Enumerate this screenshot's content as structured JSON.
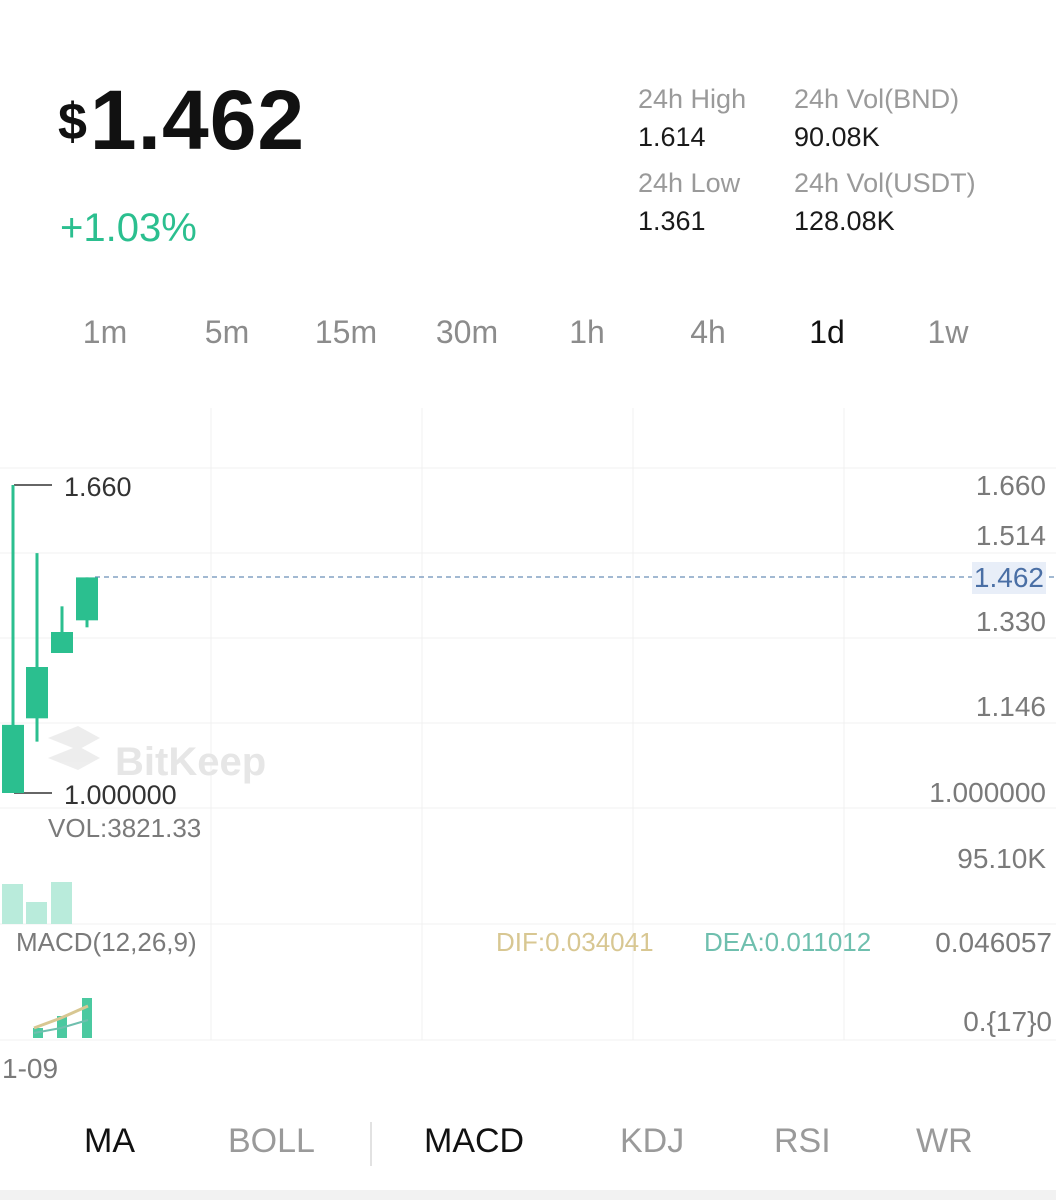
{
  "header": {
    "currency_symbol": "$",
    "price": "1.462",
    "change": "+1.03%",
    "stats": {
      "high_label": "24h High",
      "high_value": "1.614",
      "vol_bnd_label": "24h Vol(BND)",
      "vol_bnd_value": "90.08K",
      "low_label": "24h Low",
      "low_value": "1.361",
      "vol_usdt_label": "24h Vol(USDT)",
      "vol_usdt_value": "128.08K"
    }
  },
  "intervals": [
    {
      "label": "1m",
      "active": false
    },
    {
      "label": "5m",
      "active": false
    },
    {
      "label": "15m",
      "active": false
    },
    {
      "label": "30m",
      "active": false
    },
    {
      "label": "1h",
      "active": false
    },
    {
      "label": "4h",
      "active": false
    },
    {
      "label": "1d",
      "active": true
    },
    {
      "label": "1w",
      "active": false
    }
  ],
  "chart": {
    "y_axis": [
      "1.660",
      "1.514",
      "1.462",
      "1.330",
      "1.146",
      "1.000000"
    ],
    "current_price_tag": "1.462",
    "high_marker": "1.660",
    "low_marker": "1.000000",
    "watermark": "BitKeep",
    "volume_label": "VOL:3821.33",
    "volume_axis": "95.10K",
    "macd_label": "MACD(12,26,9)",
    "dif_label": "DIF:0.034041",
    "dea_label": "DEA:0.011012",
    "macd_axis_top": "0.046057",
    "macd_axis_bottom": "0.{17}0",
    "x_label": "1-09",
    "colors": {
      "up": "#2bbf8f",
      "up_light": "#b9ebdb",
      "dif": "#d8c792",
      "dea": "#6fbfae",
      "price_line": "#6b8fb8"
    }
  },
  "candles": [
    {
      "open": 1.0,
      "close": 1.146,
      "high": 1.66,
      "low": 1.0
    },
    {
      "open": 1.16,
      "close": 1.27,
      "high": 1.514,
      "low": 1.11
    },
    {
      "open": 1.3,
      "close": 1.345,
      "high": 1.4,
      "low": 1.3
    },
    {
      "open": 1.37,
      "close": 1.462,
      "high": 1.462,
      "low": 1.355
    }
  ],
  "indicators": [
    {
      "label": "MA",
      "active": true
    },
    {
      "label": "BOLL",
      "active": false
    },
    {
      "label": "MACD",
      "active": true
    },
    {
      "label": "KDJ",
      "active": false
    },
    {
      "label": "RSI",
      "active": false
    },
    {
      "label": "WR",
      "active": false
    }
  ]
}
